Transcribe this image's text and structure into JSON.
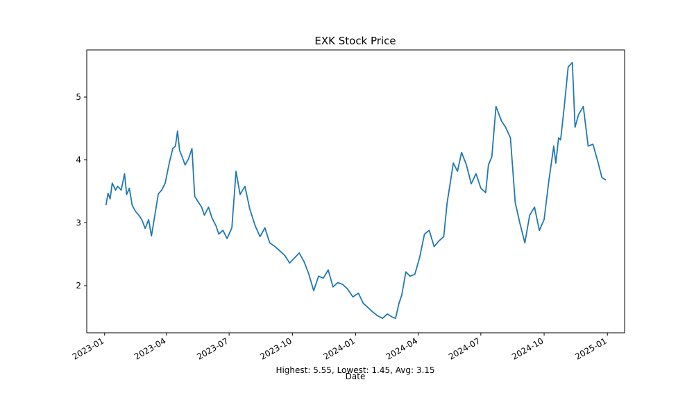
{
  "chart_data": {
    "type": "line",
    "title": "EXK Stock Price",
    "xlabel": "Date",
    "ylabel": "",
    "annotation": "Highest: 5.55, Lowest: 1.45, Avg: 3.15",
    "xlim": [
      "2022-12-06",
      "2025-01-26"
    ],
    "ylim": [
      1.25,
      5.75
    ],
    "x_ticks": [
      "2023-01",
      "2023-04",
      "2023-07",
      "2023-10",
      "2024-01",
      "2024-04",
      "2024-07",
      "2024-10",
      "2025-01"
    ],
    "y_ticks": [
      2,
      3,
      4,
      5
    ],
    "grid": false,
    "legend": "none",
    "colors": {
      "line": "#1f77b4"
    },
    "series": [
      {
        "x": [
          "2023-01-03",
          "2023-01-06",
          "2023-01-09",
          "2023-01-12",
          "2023-01-17",
          "2023-01-20",
          "2023-01-25",
          "2023-01-30",
          "2023-02-02",
          "2023-02-06",
          "2023-02-10",
          "2023-02-15",
          "2023-02-20",
          "2023-02-24",
          "2023-03-01",
          "2023-03-06",
          "2023-03-10",
          "2023-03-15",
          "2023-03-20",
          "2023-03-25",
          "2023-03-30",
          "2023-04-05",
          "2023-04-10",
          "2023-04-14",
          "2023-04-17",
          "2023-04-20",
          "2023-04-24",
          "2023-04-28",
          "2023-05-03",
          "2023-05-08",
          "2023-05-12",
          "2023-05-16",
          "2023-05-22",
          "2023-05-26",
          "2023-06-01",
          "2023-06-06",
          "2023-06-12",
          "2023-06-16",
          "2023-06-22",
          "2023-06-28",
          "2023-07-05",
          "2023-07-11",
          "2023-07-17",
          "2023-07-24",
          "2023-07-31",
          "2023-08-08",
          "2023-08-15",
          "2023-08-22",
          "2023-08-29",
          "2023-09-06",
          "2023-09-13",
          "2023-09-20",
          "2023-09-27",
          "2023-10-04",
          "2023-10-11",
          "2023-10-18",
          "2023-10-25",
          "2023-11-01",
          "2023-11-08",
          "2023-11-15",
          "2023-11-22",
          "2023-11-29",
          "2023-12-06",
          "2023-12-13",
          "2023-12-20",
          "2023-12-28",
          "2024-01-05",
          "2024-01-12",
          "2024-01-19",
          "2024-01-26",
          "2024-02-02",
          "2024-02-09",
          "2024-02-16",
          "2024-02-23",
          "2024-02-28",
          "2024-03-04",
          "2024-03-08",
          "2024-03-14",
          "2024-03-20",
          "2024-03-27",
          "2024-04-03",
          "2024-04-10",
          "2024-04-17",
          "2024-04-24",
          "2024-05-01",
          "2024-05-08",
          "2024-05-13",
          "2024-05-17",
          "2024-05-22",
          "2024-05-28",
          "2024-06-03",
          "2024-06-10",
          "2024-06-17",
          "2024-06-24",
          "2024-07-01",
          "2024-07-08",
          "2024-07-12",
          "2024-07-17",
          "2024-07-23",
          "2024-07-31",
          "2024-08-06",
          "2024-08-13",
          "2024-08-20",
          "2024-08-27",
          "2024-09-03",
          "2024-09-10",
          "2024-09-17",
          "2024-09-24",
          "2024-10-01",
          "2024-10-08",
          "2024-10-15",
          "2024-10-18",
          "2024-10-22",
          "2024-10-25",
          "2024-10-30",
          "2024-11-05",
          "2024-11-11",
          "2024-11-15",
          "2024-11-20",
          "2024-11-27",
          "2024-12-04",
          "2024-12-11",
          "2024-12-18",
          "2024-12-24",
          "2024-12-30"
        ],
        "y": [
          3.28,
          3.47,
          3.38,
          3.63,
          3.52,
          3.58,
          3.52,
          3.78,
          3.45,
          3.55,
          3.28,
          3.18,
          3.12,
          3.05,
          2.91,
          3.05,
          2.79,
          3.12,
          3.46,
          3.52,
          3.63,
          3.95,
          4.18,
          4.22,
          4.46,
          4.15,
          4.04,
          3.92,
          4.02,
          4.18,
          3.42,
          3.35,
          3.25,
          3.12,
          3.25,
          3.08,
          2.95,
          2.82,
          2.88,
          2.75,
          2.92,
          3.82,
          3.45,
          3.58,
          3.22,
          2.95,
          2.78,
          2.92,
          2.68,
          2.62,
          2.55,
          2.48,
          2.36,
          2.44,
          2.52,
          2.38,
          2.18,
          1.92,
          2.15,
          2.12,
          2.25,
          1.98,
          2.05,
          2.02,
          1.95,
          1.82,
          1.88,
          1.72,
          1.65,
          1.58,
          1.52,
          1.48,
          1.55,
          1.5,
          1.48,
          1.72,
          1.85,
          2.22,
          2.15,
          2.18,
          2.45,
          2.82,
          2.88,
          2.62,
          2.71,
          2.78,
          3.32,
          3.6,
          3.95,
          3.82,
          4.12,
          3.92,
          3.62,
          3.78,
          3.55,
          3.48,
          3.92,
          4.05,
          4.85,
          4.62,
          4.52,
          4.35,
          3.32,
          2.98,
          2.68,
          3.12,
          3.25,
          2.88,
          3.05,
          3.68,
          4.22,
          3.95,
          4.35,
          4.32,
          4.82,
          5.48,
          5.55,
          4.52,
          4.72,
          4.85,
          4.22,
          4.25,
          3.98,
          3.72,
          3.68
        ]
      }
    ]
  }
}
